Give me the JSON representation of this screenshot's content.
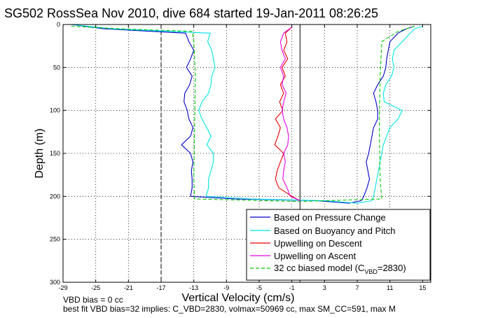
{
  "chart_data": {
    "type": "line",
    "title": "SG502 RossSea Nov 2010, dive 684 started 19-Jan-2011 08:26:25",
    "xlabel": "Vertical Velocity (cm/s)",
    "ylabel": "Depth (m)",
    "xlim": [
      -29,
      16
    ],
    "ylim": [
      300,
      0
    ],
    "y_reversed": true,
    "grid": true,
    "legend_placement": "bottom-right",
    "x_ticks": [
      -29,
      -25,
      -21,
      -17,
      -13,
      -9,
      -5,
      -1,
      3,
      7,
      11,
      15
    ],
    "y_ticks": [
      0,
      50,
      100,
      150,
      200,
      250,
      300
    ],
    "vertical_lines": [
      {
        "x": -17,
        "style": "dashed"
      },
      {
        "x": 0,
        "style": "solid"
      }
    ],
    "legend_labels": {
      "pressure": "Based on Pressure Change",
      "buoyancy": "Based on Buoyancy and Pitch",
      "up_descent": "Upwelling on Descent",
      "up_ascent": "Upwelling on Ascent",
      "model_prefix": "32 cc biased model (C",
      "model_sub": "VBD",
      "model_suffix": "=2830)"
    },
    "series": [
      {
        "name": "Based on Pressure Change",
        "color": "#0000c8",
        "style": "solid",
        "depth": [
          0,
          5,
          10,
          20,
          30,
          40,
          50,
          60,
          70,
          80,
          90,
          100,
          110,
          120,
          130,
          140,
          150,
          160,
          170,
          180,
          190,
          200,
          203,
          205,
          208,
          205,
          200,
          190,
          180,
          170,
          160,
          150,
          140,
          130,
          120,
          110,
          100,
          90,
          80,
          70,
          60,
          50,
          40,
          30,
          20,
          10,
          5,
          2
        ],
        "values": [
          -28,
          -24,
          -14,
          -13.6,
          -13,
          -13.4,
          -13.9,
          -13.2,
          -13.5,
          -14.1,
          -14.2,
          -13.8,
          -13.6,
          -13.1,
          -13.4,
          -14.5,
          -13.4,
          -13.1,
          -13.3,
          -13.2,
          -13.2,
          -13.4,
          -8,
          2,
          6,
          7.5,
          7.8,
          8.2,
          8.5,
          8.3,
          8.1,
          8.4,
          8.6,
          8.8,
          9.0,
          9.5,
          9.5,
          9.3,
          9.0,
          9.5,
          10.2,
          10.5,
          10.6,
          10.8,
          11.0,
          12,
          13,
          14
        ]
      },
      {
        "name": "Based on Buoyancy and Pitch",
        "color": "#00e5e5",
        "style": "solid",
        "depth": [
          0,
          5,
          10,
          20,
          30,
          40,
          50,
          60,
          70,
          80,
          90,
          100,
          110,
          120,
          130,
          140,
          150,
          160,
          170,
          180,
          190,
          200,
          203,
          205,
          208,
          205,
          200,
          190,
          180,
          170,
          160,
          150,
          140,
          130,
          120,
          110,
          100,
          90,
          80,
          70,
          60,
          50,
          40,
          30,
          20,
          10,
          5,
          2
        ],
        "values": [
          -28,
          -23,
          -11,
          -11.3,
          -10.8,
          -10.6,
          -10.4,
          -10.8,
          -10.9,
          -11.2,
          -12,
          -12.4,
          -12,
          -11.4,
          -10.9,
          -11.4,
          -10.6,
          -10.6,
          -10.9,
          -11.2,
          -11.2,
          -11.5,
          -6,
          3,
          7,
          8.8,
          9.0,
          9.2,
          9.4,
          9.6,
          9.8,
          10.0,
          10.2,
          10.6,
          11,
          12,
          12.5,
          10.3,
          10.2,
          10.5,
          11.2,
          11.5,
          11.3,
          11.5,
          12.5,
          13.5,
          14,
          15
        ]
      },
      {
        "name": "Upwelling on Descent",
        "color": "#e80000",
        "style": "solid",
        "depth": [
          3,
          10,
          20,
          30,
          40,
          50,
          60,
          70,
          80,
          90,
          100,
          110,
          120,
          130,
          140,
          150,
          160,
          170,
          180,
          190,
          200,
          205
        ],
        "values": [
          -1,
          -1.8,
          -1.6,
          -2.0,
          -1.5,
          -2.2,
          -1.8,
          -2.4,
          -2.0,
          -2.5,
          -2.1,
          -3.0,
          -2.4,
          -2.7,
          -3.1,
          -2.0,
          -2.4,
          -2.8,
          -3.0,
          -2.6,
          -1.0,
          0
        ]
      },
      {
        "name": "Upwelling on Ascent",
        "color": "#e800e8",
        "style": "solid",
        "depth": [
          3,
          10,
          20,
          30,
          40,
          50,
          60,
          70,
          80,
          90,
          100,
          110,
          120,
          130,
          140,
          150,
          160,
          170,
          180,
          190,
          200,
          205
        ],
        "values": [
          -1,
          -2.0,
          -2.4,
          -2.2,
          -1.8,
          -2.4,
          -2.0,
          -2.2,
          -1.7,
          -2.0,
          -2.2,
          -2.0,
          -1.6,
          -1.4,
          -1.5,
          -2.0,
          -1.8,
          -2.0,
          -2.1,
          -1.6,
          -1.2,
          0
        ]
      },
      {
        "name": "32 cc biased model (CVBD=2830)",
        "color": "#00c800",
        "style": "dashed",
        "depth": [
          2,
          5,
          8,
          20,
          60,
          120,
          180,
          203,
          206,
          203,
          180,
          120,
          60,
          20,
          8,
          5,
          2
        ],
        "values": [
          -28,
          -22,
          -13.2,
          -13,
          -12.8,
          -12.9,
          -13,
          -12.9,
          0,
          10,
          9.8,
          9.7,
          9.8,
          10,
          12,
          13,
          14
        ]
      }
    ],
    "annotations": [
      "VBD bias = 0 cc",
      "best fit VBD bias=32 implies: C_VBD=2830, volmax=50969 cc, max SM_CC=591, max M"
    ]
  }
}
